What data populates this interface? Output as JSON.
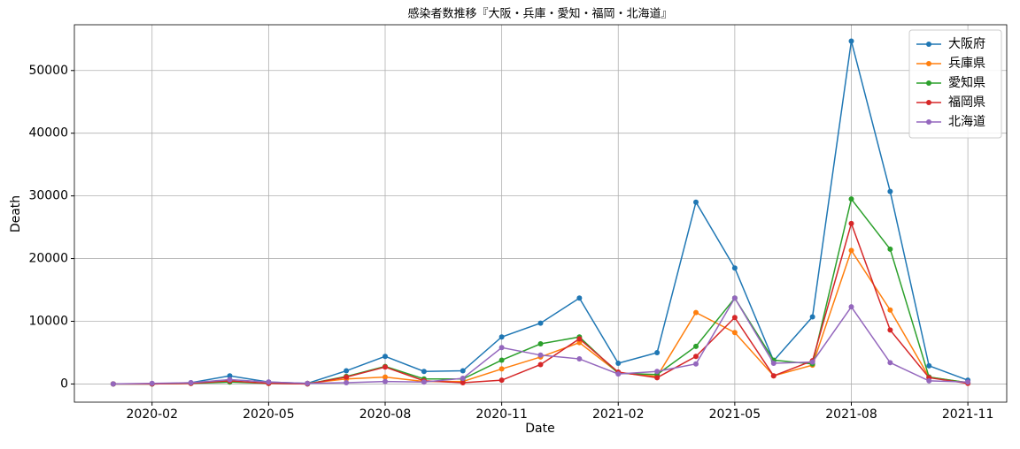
{
  "chart_data": {
    "type": "line",
    "title": "感染者数推移『大阪・兵庫・愛知・福岡・北海道』",
    "x_label": "Date",
    "y_label": "Death",
    "x": [
      "2020-01",
      "2020-02",
      "2020-03",
      "2020-04",
      "2020-05",
      "2020-06",
      "2020-07",
      "2020-08",
      "2020-09",
      "2020-10",
      "2020-11",
      "2020-12",
      "2021-01",
      "2021-02",
      "2021-03",
      "2021-04",
      "2021-05",
      "2021-06",
      "2021-07",
      "2021-08",
      "2021-09",
      "2021-10",
      "2021-11"
    ],
    "series": [
      {
        "name": "大阪府",
        "color": "#1f77b4",
        "values": [
          0,
          0,
          200,
          1300,
          300,
          100,
          2100,
          4400,
          2000,
          2100,
          7500,
          9700,
          13700,
          3300,
          5000,
          29000,
          18500,
          3700,
          10700,
          54700,
          30700,
          2900,
          600
        ]
      },
      {
        "name": "兵庫県",
        "color": "#ff7f0e",
        "values": [
          0,
          0,
          100,
          400,
          100,
          100,
          800,
          1100,
          400,
          400,
          2400,
          4300,
          6600,
          1800,
          1200,
          11400,
          8200,
          1300,
          3000,
          21300,
          11800,
          1100,
          200
        ]
      },
      {
        "name": "愛知県",
        "color": "#2ca02c",
        "values": [
          0,
          0,
          100,
          300,
          100,
          0,
          1200,
          2800,
          800,
          800,
          3800,
          6400,
          7500,
          1700,
          1500,
          6000,
          13700,
          3800,
          3200,
          29500,
          21500,
          1100,
          200
        ]
      },
      {
        "name": "福岡県",
        "color": "#d62728",
        "values": [
          0,
          0,
          100,
          500,
          100,
          0,
          1100,
          2700,
          500,
          200,
          600,
          3100,
          7200,
          1900,
          1000,
          4400,
          10600,
          1300,
          3700,
          25600,
          8600,
          1000,
          100
        ]
      },
      {
        "name": "北海道",
        "color": "#9467bd",
        "values": [
          0,
          100,
          200,
          700,
          300,
          100,
          200,
          400,
          300,
          900,
          5800,
          4600,
          4000,
          1600,
          2000,
          3200,
          13700,
          3300,
          3500,
          12300,
          3400,
          500,
          300
        ]
      }
    ],
    "xlim": [
      "2019-12",
      "2021-12"
    ],
    "xticks": [
      "2020-02",
      "2020-05",
      "2020-08",
      "2020-11",
      "2021-02",
      "2021-05",
      "2021-08",
      "2021-11"
    ],
    "ylim": [
      -2900,
      57300
    ],
    "yticks": [
      0,
      10000,
      20000,
      30000,
      40000,
      50000
    ],
    "grid": true,
    "legend": "upper-right"
  }
}
